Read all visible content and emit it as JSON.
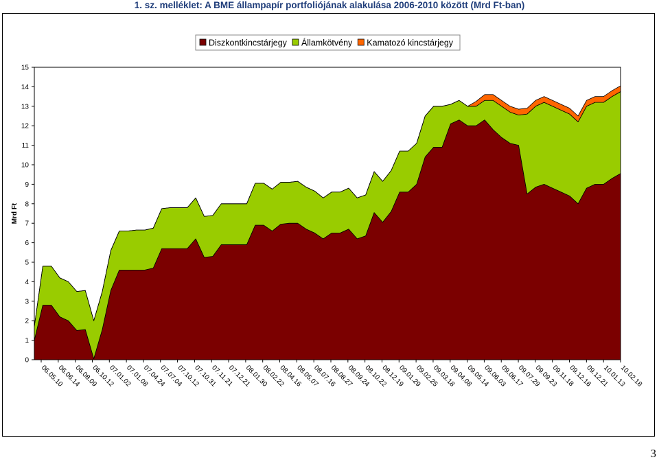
{
  "page": {
    "title": "1. sz. melléklet: A BME állampapír portfoliójának alakulása 2006-2010 között (Mrd Ft-ban)",
    "page_number": "3"
  },
  "chart_data": {
    "type": "area",
    "stacked": true,
    "title": "1. sz. melléklet: A BME állampapír portfoliójának alakulása 2006-2010 között (Mrd Ft-ban)",
    "xlabel": "",
    "ylabel": "Mrd Ft",
    "ylim": [
      0,
      15
    ],
    "yticks": [
      0,
      1,
      2,
      3,
      4,
      5,
      6,
      7,
      8,
      9,
      10,
      11,
      12,
      13,
      14,
      15
    ],
    "grid": false,
    "legend": "top-center",
    "x_tick_labels": [
      "06.05.10",
      "06.06.14",
      "06.08.09",
      "06.10.12",
      "07.01.02",
      "07.01.08",
      "07.04.24",
      "07.07.04",
      "07.10.12",
      "07.10.31",
      "07.11.21",
      "07.12.21",
      "08.01.30",
      "08.02.22",
      "08.04.16",
      "08.05.07",
      "08.07.16",
      "08.08.27",
      "08.09.24",
      "08.10.22",
      "08.12.19",
      "09.01.29",
      "09.02.25",
      "09.03.18",
      "09.04.08",
      "09.05.14",
      "09.06.03",
      "09.06.17",
      "09.07.29",
      "09.09.23",
      "09.11.18",
      "09.12.16",
      "09.12.21",
      "10.01.13",
      "10.02.18"
    ],
    "series": [
      {
        "name": "Diszkontkincstárjegy",
        "color": "#7b0000",
        "values": [
          1.0,
          2.8,
          2.8,
          2.2,
          2.0,
          1.5,
          1.55,
          0.05,
          1.55,
          3.55,
          4.6,
          4.6,
          4.6,
          4.6,
          4.7,
          5.7,
          5.7,
          5.7,
          5.7,
          6.2,
          5.25,
          5.3,
          5.9,
          5.9,
          5.9,
          5.9,
          6.9,
          6.9,
          6.6,
          6.95,
          7.0,
          7.0,
          6.7,
          6.5,
          6.2,
          6.5,
          6.5,
          6.7,
          6.2,
          6.35,
          7.55,
          7.05,
          7.6,
          8.6,
          8.6,
          9.0,
          10.4,
          10.9,
          10.9,
          12.1,
          12.3,
          12.0,
          12.0,
          12.3,
          11.8,
          11.4,
          11.1,
          11.0,
          8.5,
          8.85,
          9.0,
          8.8,
          8.6,
          8.4,
          8.0,
          8.8,
          9.0,
          9.0,
          9.3,
          9.55
        ]
      },
      {
        "name": "Államkötvény",
        "color": "#99cc00",
        "values": [
          0.7,
          2.0,
          2.0,
          2.0,
          2.0,
          2.0,
          2.0,
          1.95,
          1.95,
          2.05,
          2.0,
          2.0,
          2.05,
          2.05,
          2.05,
          2.05,
          2.1,
          2.1,
          2.1,
          2.1,
          2.1,
          2.1,
          2.1,
          2.1,
          2.1,
          2.1,
          2.15,
          2.15,
          2.15,
          2.15,
          2.1,
          2.15,
          2.15,
          2.15,
          2.1,
          2.1,
          2.1,
          2.1,
          2.1,
          2.1,
          2.1,
          2.1,
          2.1,
          2.1,
          2.1,
          2.1,
          2.1,
          2.1,
          2.1,
          1.0,
          1.0,
          1.0,
          1.0,
          1.0,
          1.5,
          1.6,
          1.6,
          1.55,
          4.1,
          4.15,
          4.2,
          4.2,
          4.2,
          4.2,
          4.2,
          4.2,
          4.2,
          4.2,
          4.2,
          4.2
        ]
      },
      {
        "name": "Kamatozó kincstárjegy",
        "color": "#ff6600",
        "values": [
          0,
          0,
          0,
          0,
          0,
          0,
          0,
          0,
          0,
          0,
          0,
          0,
          0,
          0,
          0,
          0,
          0,
          0,
          0,
          0,
          0,
          0,
          0,
          0,
          0,
          0,
          0,
          0,
          0,
          0,
          0,
          0,
          0,
          0,
          0,
          0,
          0,
          0,
          0,
          0,
          0,
          0,
          0,
          0,
          0,
          0,
          0,
          0,
          0,
          0,
          0,
          0,
          0.25,
          0.3,
          0.3,
          0.3,
          0.3,
          0.3,
          0.3,
          0.3,
          0.3,
          0.3,
          0.3,
          0.3,
          0.3,
          0.3,
          0.3,
          0.3,
          0.3,
          0.3
        ]
      }
    ]
  }
}
